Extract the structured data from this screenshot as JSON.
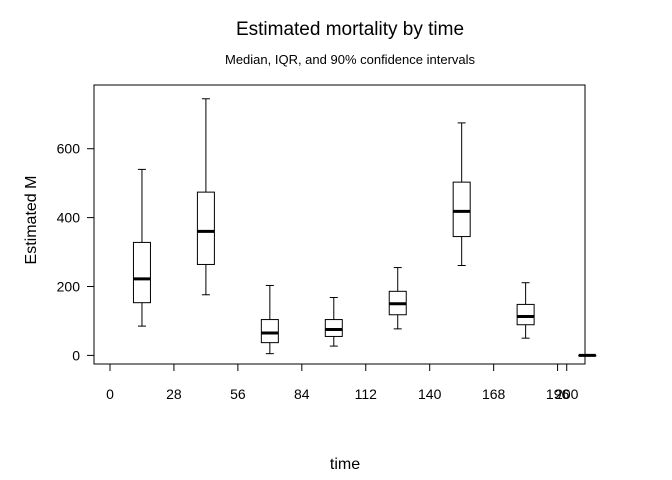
{
  "chart_data": {
    "type": "boxplot",
    "title": "Estimated mortality by time",
    "subtitle": "Median, IQR, and 90% confidence intervals",
    "xlabel": "time",
    "ylabel": "Estimated M",
    "xlim": [
      -7,
      208
    ],
    "ylim": [
      -25,
      785
    ],
    "x_ticks": [
      0,
      28,
      56,
      84,
      112,
      140,
      168,
      196,
      200
    ],
    "y_ticks": [
      0,
      200,
      400,
      600
    ],
    "grid": false,
    "legend": "none",
    "boxes": [
      {
        "x": 14,
        "whisker_low": 85,
        "q1": 153,
        "median": 222,
        "q3": 328,
        "whisker_high": 540
      },
      {
        "x": 42,
        "whisker_low": 176,
        "q1": 264,
        "median": 360,
        "q3": 474,
        "whisker_high": 745
      },
      {
        "x": 70,
        "whisker_low": 5,
        "q1": 37,
        "median": 65,
        "q3": 104,
        "whisker_high": 203
      },
      {
        "x": 98,
        "whisker_low": 27,
        "q1": 55,
        "median": 75,
        "q3": 104,
        "whisker_high": 168
      },
      {
        "x": 126,
        "whisker_low": 77,
        "q1": 118,
        "median": 150,
        "q3": 186,
        "whisker_high": 255
      },
      {
        "x": 154,
        "whisker_low": 261,
        "q1": 345,
        "median": 418,
        "q3": 503,
        "whisker_high": 675
      },
      {
        "x": 182,
        "whisker_low": 50,
        "q1": 89,
        "median": 113,
        "q3": 148,
        "whisker_high": 211
      },
      {
        "x": 209,
        "whisker_low": 0,
        "q1": 0,
        "median": 0,
        "q3": 0,
        "whisker_high": 0
      }
    ]
  }
}
